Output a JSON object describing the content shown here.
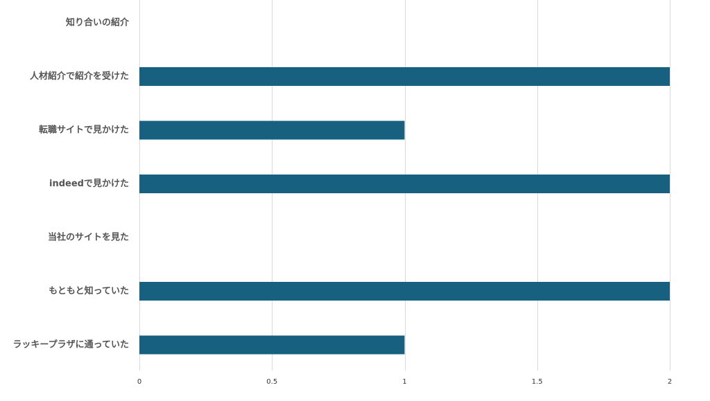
{
  "chart_data": {
    "type": "bar",
    "orientation": "horizontal",
    "categories": [
      "知り合いの紹介",
      "人材紹介で紹介を受けた",
      "転職サイトで見かけた",
      "indeedで見かけた",
      "当社のサイトを見た",
      "もともと知っていた",
      "ラッキープラザに通っていた"
    ],
    "values": [
      0,
      2,
      1,
      2,
      0,
      2,
      1
    ],
    "xlim": [
      0,
      2
    ],
    "xticks": [
      {
        "value": 0,
        "label": "0"
      },
      {
        "value": 0.5,
        "label": "0.5"
      },
      {
        "value": 1,
        "label": "1"
      },
      {
        "value": 1.5,
        "label": "1.5"
      },
      {
        "value": 2,
        "label": "2"
      }
    ],
    "title": "",
    "xlabel": "",
    "ylabel": "",
    "grid": true,
    "legend": "none",
    "bar_color": "#17607f",
    "grid_color": "#d9d9d9",
    "label_color": "#555555"
  }
}
